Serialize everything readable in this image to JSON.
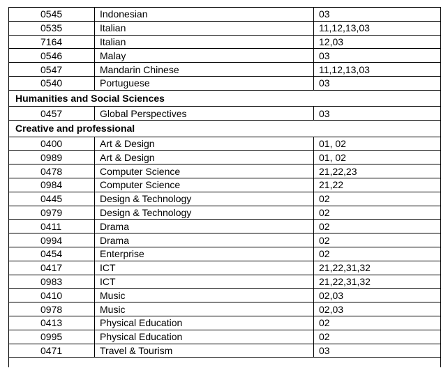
{
  "groups": [
    {
      "heading": "",
      "rows": [
        {
          "code": "0545",
          "subject": "Indonesian",
          "components": "03"
        },
        {
          "code": "0535",
          "subject": "Italian",
          "components": "11,12,13,03"
        },
        {
          "code": "7164",
          "subject": "Italian",
          "components": "12,03"
        },
        {
          "code": "0546",
          "subject": "Malay",
          "components": "03"
        },
        {
          "code": "0547",
          "subject": "Mandarin Chinese",
          "components": "11,12,13,03"
        },
        {
          "code": "0540",
          "subject": "Portuguese",
          "components": "03"
        }
      ]
    },
    {
      "heading": "Humanities and Social Sciences",
      "rows": [
        {
          "code": "0457",
          "subject": "Global Perspectives",
          "components": "03"
        }
      ]
    },
    {
      "heading": "Creative and professional",
      "rows": [
        {
          "code": "0400",
          "subject": "Art & Design",
          "components": "01, 02"
        },
        {
          "code": "0989",
          "subject": "Art & Design",
          "components": "01, 02"
        },
        {
          "code": "0478",
          "subject": "Computer Science",
          "components": "21,22,23"
        },
        {
          "code": "0984",
          "subject": "Computer Science",
          "components": "21,22"
        },
        {
          "code": "0445",
          "subject": "Design & Technology",
          "components": "02"
        },
        {
          "code": "0979",
          "subject": "Design & Technology",
          "components": "02"
        },
        {
          "code": "0411",
          "subject": "Drama",
          "components": "02"
        },
        {
          "code": "0994",
          "subject": "Drama",
          "components": "02"
        },
        {
          "code": "0454",
          "subject": "Enterprise",
          "components": "02"
        },
        {
          "code": "0417",
          "subject": "ICT",
          "components": "21,22,31,32"
        },
        {
          "code": "0983",
          "subject": "ICT",
          "components": "21,22,31,32"
        },
        {
          "code": "0410",
          "subject": "Music",
          "components": "02,03"
        },
        {
          "code": "0978",
          "subject": "Music",
          "components": "02,03"
        },
        {
          "code": "0413",
          "subject": "Physical Education",
          "components": "02"
        },
        {
          "code": "0995",
          "subject": "Physical Education",
          "components": "02"
        },
        {
          "code": "0471",
          "subject": "Travel & Tourism",
          "components": "03"
        }
      ]
    }
  ]
}
